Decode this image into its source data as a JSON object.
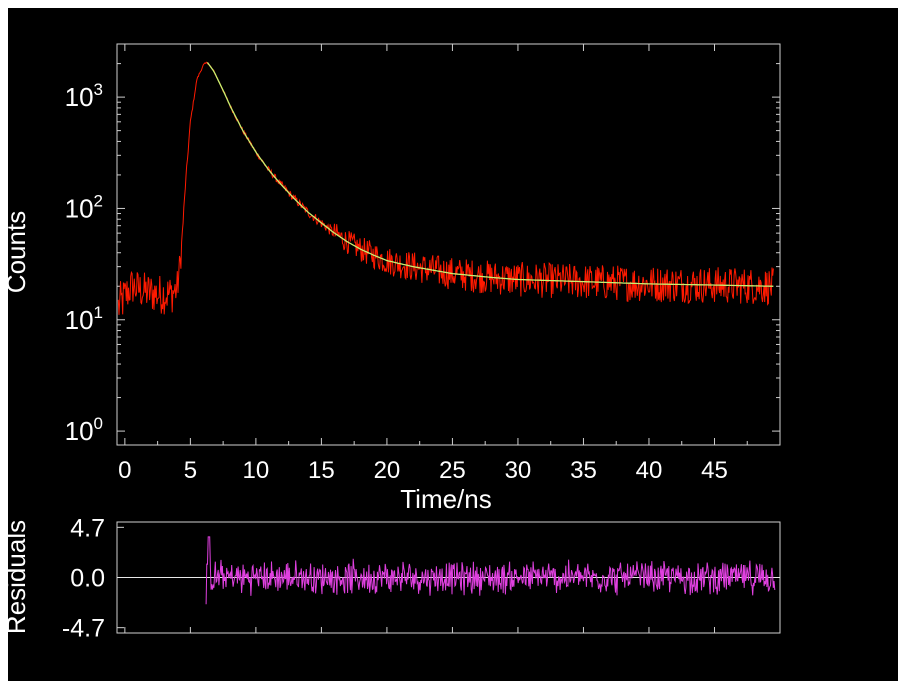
{
  "chart_data": [
    {
      "type": "line",
      "scale_y": "log",
      "xlabel": "Time/ns",
      "ylabel": "Counts",
      "x_ticks": [
        0,
        5,
        10,
        15,
        20,
        25,
        30,
        35,
        40,
        45
      ],
      "x_tick_labels": [
        "0",
        "5",
        "10",
        "15",
        "20",
        "25",
        "30",
        "35",
        "40",
        "45"
      ],
      "xlim": [
        -0.6,
        50.0
      ],
      "y_ticks": [
        {
          "value": 1,
          "base": "10",
          "exp": "0"
        },
        {
          "value": 10,
          "base": "10",
          "exp": "1"
        },
        {
          "value": 100,
          "base": "10",
          "exp": "2"
        },
        {
          "value": 1000,
          "base": "10",
          "exp": "3"
        }
      ],
      "ylim": [
        0.75,
        3000
      ],
      "grid": false,
      "series": [
        {
          "role": "measured decay",
          "color": "#ff1a00",
          "points": [
            [
              -0.5,
              13
            ],
            [
              0.5,
              20
            ],
            [
              1.5,
              18
            ],
            [
              2.5,
              17
            ],
            [
              3.5,
              17
            ],
            [
              4.0,
              19
            ],
            [
              4.3,
              40
            ],
            [
              4.6,
              150
            ],
            [
              5.0,
              600
            ],
            [
              5.5,
              1450
            ],
            [
              6.0,
              1950
            ],
            [
              6.3,
              2050
            ],
            [
              6.8,
              1700
            ],
            [
              7.5,
              1150
            ],
            [
              8.0,
              850
            ],
            [
              9.0,
              500
            ],
            [
              10.0,
              320
            ],
            [
              11.0,
              220
            ],
            [
              12.0,
              160
            ],
            [
              13.0,
              120
            ],
            [
              14.0,
              92
            ],
            [
              15.0,
              74
            ],
            [
              16.0,
              60
            ],
            [
              17.0,
              50
            ],
            [
              18.0,
              43
            ],
            [
              19.0,
              38
            ],
            [
              20.0,
              34
            ],
            [
              22.0,
              30
            ],
            [
              25.0,
              26
            ],
            [
              28.0,
              24
            ],
            [
              30.0,
              23
            ],
            [
              35.0,
              22
            ],
            [
              40.0,
              21
            ],
            [
              45.0,
              20.5
            ],
            [
              49.5,
              20
            ]
          ]
        },
        {
          "role": "fit",
          "color": "#c8f070",
          "points": [
            [
              6.3,
              2050
            ],
            [
              6.8,
              1700
            ],
            [
              7.5,
              1150
            ],
            [
              8.0,
              850
            ],
            [
              9.0,
              500
            ],
            [
              10.0,
              320
            ],
            [
              11.0,
              220
            ],
            [
              12.0,
              160
            ],
            [
              13.0,
              120
            ],
            [
              14.0,
              92
            ],
            [
              15.0,
              74
            ],
            [
              16.0,
              60
            ],
            [
              17.0,
              50
            ],
            [
              18.0,
              43
            ],
            [
              19.0,
              38
            ],
            [
              20.0,
              34
            ],
            [
              22.0,
              30
            ],
            [
              25.0,
              26
            ],
            [
              28.0,
              24
            ],
            [
              30.0,
              23
            ],
            [
              35.0,
              22
            ],
            [
              40.0,
              21
            ],
            [
              45.0,
              20.5
            ],
            [
              49.5,
              20
            ]
          ]
        }
      ]
    },
    {
      "type": "line",
      "ylabel": "Residuals",
      "y_ticks": [
        4.7,
        0.0,
        -4.7
      ],
      "y_tick_labels": [
        "4.7",
        "0.0",
        "-4.7"
      ],
      "ylim": [
        -5.2,
        5.2
      ],
      "xlim": [
        -0.6,
        50.0
      ],
      "zero_line": true,
      "grid": false,
      "series": [
        {
          "role": "residuals",
          "color": "#e040e0",
          "x_start": 6.2,
          "x_end": 49.6,
          "peak": [
            6.4,
            3.8
          ],
          "start_value": -2.5,
          "noise_amplitude": 1.5
        }
      ]
    }
  ],
  "colors": {
    "background": "#000000",
    "axes": "#cfcfcf",
    "text": "#ffffff"
  }
}
